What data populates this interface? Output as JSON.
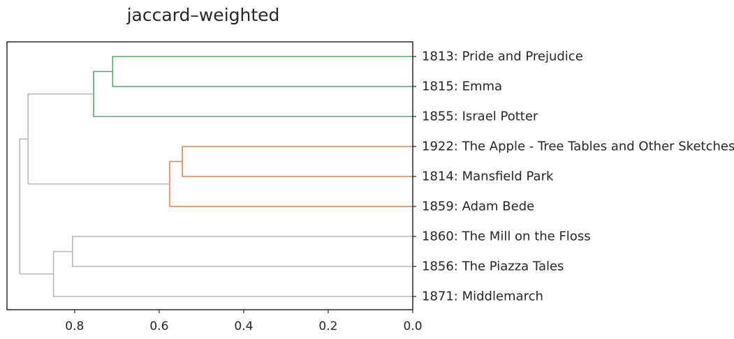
{
  "chart_data": {
    "type": "dendrogram",
    "title": "jaccard–weighted",
    "orientation": "right",
    "xlim": [
      0.96,
      0.0
    ],
    "xticks": [
      0.8,
      0.6,
      0.4,
      0.2,
      0.0
    ],
    "xtick_labels": [
      "0.8",
      "0.6",
      "0.4",
      "0.2",
      "0.0"
    ],
    "leaves": [
      "1813: Pride and Prejudice",
      "1815: Emma",
      "1855: Israel Potter",
      "1922: The Apple - Tree Tables and Other Sketches",
      "1814: Mansfield Park",
      "1859: Adam Bede",
      "1860: The Mill on the Floss",
      "1856: The Piazza Tales",
      "1871: Middlemarch"
    ],
    "merges": [
      {
        "a": "L0",
        "b": "L1",
        "height": 0.71,
        "color": "#55a868"
      },
      {
        "a": "M0",
        "b": "L2",
        "height": 0.755,
        "color": "#55a868"
      },
      {
        "a": "L3",
        "b": "L4",
        "height": 0.545,
        "color": "#dd8452"
      },
      {
        "a": "M2",
        "b": "L5",
        "height": 0.575,
        "color": "#dd8452"
      },
      {
        "a": "M1",
        "b": "M3",
        "height": 0.91,
        "color": "#b8b8b8"
      },
      {
        "a": "L6",
        "b": "L7",
        "height": 0.805,
        "color": "#b8b8b8"
      },
      {
        "a": "M5",
        "b": "L8",
        "height": 0.85,
        "color": "#b8b8b8"
      },
      {
        "a": "M4",
        "b": "M6",
        "height": 0.93,
        "color": "#b8b8b8"
      }
    ],
    "colors": {
      "cluster_1": "#55a868",
      "cluster_2": "#dd8452",
      "above_threshold": "#b8b8b8",
      "axis": "#262626"
    }
  }
}
